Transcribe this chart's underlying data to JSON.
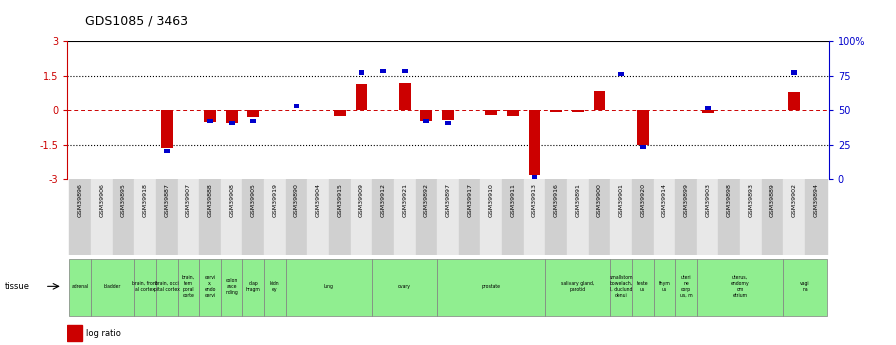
{
  "title": "GDS1085 / 3463",
  "samples": [
    "GSM39896",
    "GSM39906",
    "GSM39895",
    "GSM39918",
    "GSM39887",
    "GSM39907",
    "GSM39888",
    "GSM39908",
    "GSM39905",
    "GSM39919",
    "GSM39890",
    "GSM39904",
    "GSM39915",
    "GSM39909",
    "GSM39912",
    "GSM39921",
    "GSM39892",
    "GSM39897",
    "GSM39917",
    "GSM39910",
    "GSM39911",
    "GSM39913",
    "GSM39916",
    "GSM39891",
    "GSM39900",
    "GSM39901",
    "GSM39920",
    "GSM39914",
    "GSM39899",
    "GSM39903",
    "GSM39898",
    "GSM39893",
    "GSM39889",
    "GSM39902",
    "GSM39894"
  ],
  "log_ratio": [
    0.0,
    0.0,
    0.0,
    0.0,
    -1.65,
    0.0,
    -0.5,
    -0.55,
    -0.3,
    0.0,
    0.0,
    0.0,
    -0.25,
    1.15,
    0.0,
    1.2,
    -0.45,
    -0.4,
    0.0,
    -0.2,
    -0.25,
    -2.8,
    -0.05,
    -0.05,
    0.85,
    0.0,
    -1.5,
    0.0,
    0.0,
    -0.1,
    0.0,
    0.0,
    0.0,
    0.8,
    0.0
  ],
  "pct_rank_y": [
    null,
    null,
    null,
    null,
    -1.75,
    null,
    -0.45,
    -0.55,
    -0.45,
    null,
    0.2,
    null,
    null,
    1.65,
    1.7,
    1.7,
    -0.45,
    -0.55,
    null,
    null,
    null,
    -2.9,
    null,
    null,
    null,
    1.6,
    -1.6,
    null,
    null,
    0.1,
    null,
    null,
    null,
    1.65,
    null
  ],
  "tissue_groups": [
    {
      "label": "adrenal",
      "start": 0,
      "end": 1
    },
    {
      "label": "bladder",
      "start": 1,
      "end": 3
    },
    {
      "label": "brain, front\nal cortex",
      "start": 3,
      "end": 4
    },
    {
      "label": "brain, occi\npital cortex",
      "start": 4,
      "end": 5
    },
    {
      "label": "brain,\ntem\nporal\ncorte",
      "start": 5,
      "end": 6
    },
    {
      "label": "cervi\nx,\nendo\ncervi",
      "start": 6,
      "end": 7
    },
    {
      "label": "colon\nasce\nnding",
      "start": 7,
      "end": 8
    },
    {
      "label": "diap\nhragm",
      "start": 8,
      "end": 9
    },
    {
      "label": "kidn\ney",
      "start": 9,
      "end": 10
    },
    {
      "label": "lung",
      "start": 10,
      "end": 14
    },
    {
      "label": "ovary",
      "start": 14,
      "end": 17
    },
    {
      "label": "prostate",
      "start": 17,
      "end": 22
    },
    {
      "label": "salivary gland,\nparotid",
      "start": 22,
      "end": 25
    },
    {
      "label": "smallstom\nbowelach,\nl, duclund\ndenui",
      "start": 25,
      "end": 26
    },
    {
      "label": "teste\nus",
      "start": 26,
      "end": 27
    },
    {
      "label": "thym\nus",
      "start": 27,
      "end": 28
    },
    {
      "label": "uteri\nne\ncorp\nus, m",
      "start": 28,
      "end": 29
    },
    {
      "label": "uterus,\nendomy\nom\netrium",
      "start": 29,
      "end": 33
    },
    {
      "label": "vagi\nna",
      "start": 33,
      "end": 35
    }
  ],
  "ylim": [
    -3,
    3
  ],
  "yticks_left": [
    -3,
    -1.5,
    0,
    1.5,
    3
  ],
  "yticks_right_labels": [
    "0",
    "25",
    "50",
    "75",
    "100%"
  ],
  "yticks_right_vals": [
    -3,
    -1.5,
    0,
    1.5,
    3
  ],
  "dotted_lines": [
    -1.5,
    1.5
  ],
  "log_ratio_color": "#cc0000",
  "percentile_color": "#0000cc",
  "background_color": "#ffffff",
  "tissue_color": "#90ee90",
  "grid_color": "#cccccc"
}
